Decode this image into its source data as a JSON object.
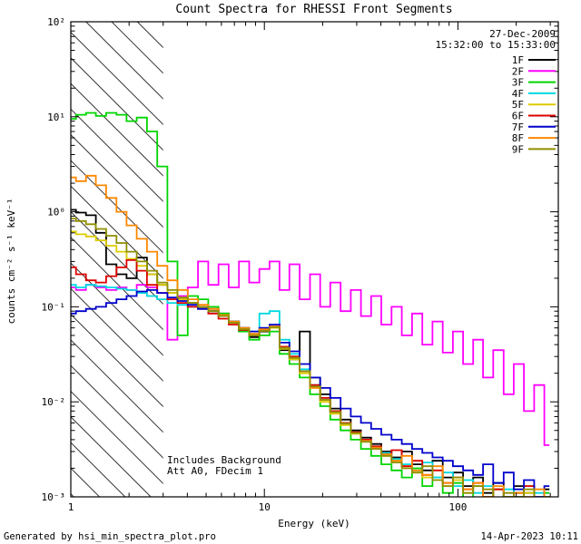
{
  "title": "Count Spectra for RHESSI Front Segments",
  "annotations": {
    "date": "27-Dec-2009",
    "time_range": "15:32:00 to 15:33:00",
    "note1": "Includes Background",
    "note2": "Att A0, FDecim 1"
  },
  "footer": {
    "generated_by": "Generated by hsi_min_spectra_plot.pro",
    "timestamp": "14-Apr-2023 10:11"
  },
  "chart_data": {
    "type": "line",
    "title": "Count Spectra for RHESSI Front Segments",
    "xlabel": "Energy (keV)",
    "ylabel": "counts cm⁻² s⁻¹ keV⁻¹",
    "xscale": "log",
    "yscale": "log",
    "xlim": [
      1,
      330
    ],
    "ylim": [
      0.001,
      100
    ],
    "grid": false,
    "legend_position": "top-right",
    "x_major_ticks": [
      1,
      10,
      100
    ],
    "x_tick_labels": [
      "1",
      "10",
      "100"
    ],
    "y_major_ticks": [
      100,
      10,
      1,
      0.1,
      0.01,
      0.001
    ],
    "y_tick_labels": [
      "10²",
      "10¹",
      "10⁰",
      "10⁻¹",
      "10⁻²",
      "10⁻³"
    ],
    "hatch_region": {
      "xmin": 1,
      "xmax": 3
    },
    "x": [
      1.0,
      1.13,
      1.27,
      1.43,
      1.62,
      1.83,
      2.06,
      2.33,
      2.63,
      2.97,
      3.35,
      3.78,
      4.27,
      4.83,
      5.45,
      6.16,
      6.95,
      7.85,
      8.87,
      10.0,
      11.3,
      12.7,
      14.3,
      16.2,
      18.3,
      20.6,
      23.3,
      26.3,
      29.7,
      33.5,
      37.8,
      42.7,
      48.3,
      54.5,
      61.6,
      69.5,
      78.5,
      88.7,
      100,
      113,
      127,
      143,
      162,
      183,
      206,
      233,
      263,
      297
    ],
    "series": [
      {
        "name": "1F",
        "color": "#000000",
        "y": [
          1.05,
          0.98,
          0.92,
          0.6,
          0.28,
          0.22,
          0.2,
          0.33,
          0.22,
          0.17,
          0.14,
          0.12,
          0.11,
          0.1,
          0.095,
          0.085,
          0.07,
          0.055,
          0.048,
          0.055,
          0.06,
          0.035,
          0.028,
          0.055,
          0.018,
          0.012,
          0.0085,
          0.0065,
          0.005,
          0.0042,
          0.0036,
          0.003,
          0.0026,
          0.003,
          0.0022,
          0.0019,
          0.0024,
          0.0016,
          0.0018,
          0.0013,
          0.0016,
          0.0011,
          0.0014,
          0.001,
          0.0013,
          0.0011,
          0.0009,
          0.0012
        ]
      },
      {
        "name": "2F",
        "color": "#ff00ff",
        "y": [
          0.16,
          0.15,
          0.17,
          0.16,
          0.15,
          0.16,
          0.15,
          0.17,
          0.16,
          0.14,
          0.045,
          0.13,
          0.16,
          0.3,
          0.17,
          0.28,
          0.16,
          0.3,
          0.18,
          0.25,
          0.3,
          0.15,
          0.28,
          0.12,
          0.22,
          0.1,
          0.18,
          0.09,
          0.15,
          0.08,
          0.13,
          0.065,
          0.1,
          0.05,
          0.085,
          0.04,
          0.07,
          0.033,
          0.055,
          0.025,
          0.045,
          0.018,
          0.035,
          0.012,
          0.025,
          0.008,
          0.015,
          0.0035
        ]
      },
      {
        "name": "3F",
        "color": "#00d500",
        "y": [
          9.5,
          10.5,
          11.0,
          10.2,
          11.0,
          10.5,
          9.0,
          9.8,
          7.0,
          3.0,
          0.3,
          0.05,
          0.13,
          0.12,
          0.1,
          0.085,
          0.07,
          0.055,
          0.045,
          0.05,
          0.055,
          0.032,
          0.025,
          0.018,
          0.012,
          0.009,
          0.0065,
          0.005,
          0.004,
          0.0032,
          0.0027,
          0.0022,
          0.0019,
          0.0016,
          0.002,
          0.0013,
          0.0016,
          0.0011,
          0.0014,
          0.0009,
          0.0013,
          0.001,
          0.0012,
          0.0008,
          0.0011,
          0.0013,
          0.0009,
          0.0011
        ]
      },
      {
        "name": "4F",
        "color": "#00d9e0",
        "y": [
          0.17,
          0.16,
          0.17,
          0.165,
          0.16,
          0.155,
          0.15,
          0.14,
          0.13,
          0.12,
          0.11,
          0.105,
          0.1,
          0.095,
          0.09,
          0.08,
          0.07,
          0.06,
          0.055,
          0.085,
          0.09,
          0.045,
          0.032,
          0.022,
          0.015,
          0.011,
          0.008,
          0.006,
          0.0048,
          0.004,
          0.0034,
          0.0029,
          0.0025,
          0.0022,
          0.0019,
          0.0023,
          0.0016,
          0.0018,
          0.0013,
          0.0015,
          0.0011,
          0.0013,
          0.0009,
          0.0012,
          0.001,
          0.0008,
          0.0011,
          0.0009
        ]
      },
      {
        "name": "5F",
        "color": "#ddcc00",
        "y": [
          0.62,
          0.58,
          0.55,
          0.5,
          0.44,
          0.38,
          0.32,
          0.27,
          0.22,
          0.17,
          0.14,
          0.12,
          0.11,
          0.1,
          0.09,
          0.08,
          0.068,
          0.058,
          0.05,
          0.056,
          0.06,
          0.036,
          0.028,
          0.02,
          0.014,
          0.01,
          0.0075,
          0.0057,
          0.0046,
          0.0038,
          0.0032,
          0.0027,
          0.0024,
          0.0021,
          0.0018,
          0.0016,
          0.0019,
          0.0013,
          0.0015,
          0.0011,
          0.0013,
          0.0009,
          0.0012,
          0.001,
          0.0008,
          0.0011,
          0.0009,
          0.001
        ]
      },
      {
        "name": "6F",
        "color": "#dd0000",
        "y": [
          0.26,
          0.22,
          0.19,
          0.18,
          0.21,
          0.26,
          0.31,
          0.24,
          0.17,
          0.14,
          0.12,
          0.11,
          0.1,
          0.095,
          0.085,
          0.075,
          0.065,
          0.057,
          0.05,
          0.057,
          0.062,
          0.038,
          0.03,
          0.021,
          0.015,
          0.011,
          0.008,
          0.006,
          0.0048,
          0.004,
          0.0034,
          0.0028,
          0.0031,
          0.0021,
          0.0024,
          0.0017,
          0.0019,
          0.0014,
          0.0016,
          0.0012,
          0.0014,
          0.001,
          0.0012,
          0.0009,
          0.0011,
          0.0013,
          0.0008,
          0.001
        ]
      },
      {
        "name": "7F",
        "color": "#0000cc",
        "y": [
          0.085,
          0.09,
          0.095,
          0.1,
          0.11,
          0.12,
          0.13,
          0.145,
          0.15,
          0.14,
          0.125,
          0.115,
          0.105,
          0.095,
          0.09,
          0.08,
          0.07,
          0.06,
          0.055,
          0.06,
          0.065,
          0.042,
          0.034,
          0.025,
          0.018,
          0.014,
          0.011,
          0.0085,
          0.007,
          0.006,
          0.0052,
          0.0045,
          0.004,
          0.0036,
          0.0032,
          0.0029,
          0.0026,
          0.0024,
          0.0021,
          0.0019,
          0.0017,
          0.0022,
          0.0014,
          0.0018,
          0.0012,
          0.0015,
          0.001,
          0.0013
        ]
      },
      {
        "name": "8F",
        "color": "#ff8800",
        "y": [
          2.3,
          2.1,
          2.4,
          1.9,
          1.4,
          1.0,
          0.72,
          0.52,
          0.38,
          0.27,
          0.19,
          0.15,
          0.12,
          0.105,
          0.095,
          0.082,
          0.07,
          0.06,
          0.052,
          0.058,
          0.062,
          0.037,
          0.029,
          0.021,
          0.014,
          0.0105,
          0.0078,
          0.0059,
          0.0047,
          0.0039,
          0.0033,
          0.0028,
          0.0024,
          0.0027,
          0.0019,
          0.0017,
          0.0021,
          0.0014,
          0.0016,
          0.0012,
          0.0014,
          0.001,
          0.0013,
          0.0009,
          0.0011,
          0.001,
          0.0012,
          0.0008
        ]
      },
      {
        "name": "9F",
        "color": "#8f8f00",
        "y": [
          0.85,
          0.8,
          0.74,
          0.66,
          0.56,
          0.47,
          0.38,
          0.3,
          0.24,
          0.18,
          0.15,
          0.125,
          0.11,
          0.1,
          0.09,
          0.08,
          0.068,
          0.058,
          0.05,
          0.056,
          0.061,
          0.037,
          0.029,
          0.021,
          0.0145,
          0.0105,
          0.0078,
          0.0059,
          0.0047,
          0.0038,
          0.0032,
          0.0027,
          0.0023,
          0.002,
          0.0018,
          0.0021,
          0.0015,
          0.0013,
          0.0016,
          0.0011,
          0.0013,
          0.0012,
          0.0009,
          0.0011,
          0.001,
          0.0012,
          0.0008,
          0.001
        ]
      }
    ]
  }
}
